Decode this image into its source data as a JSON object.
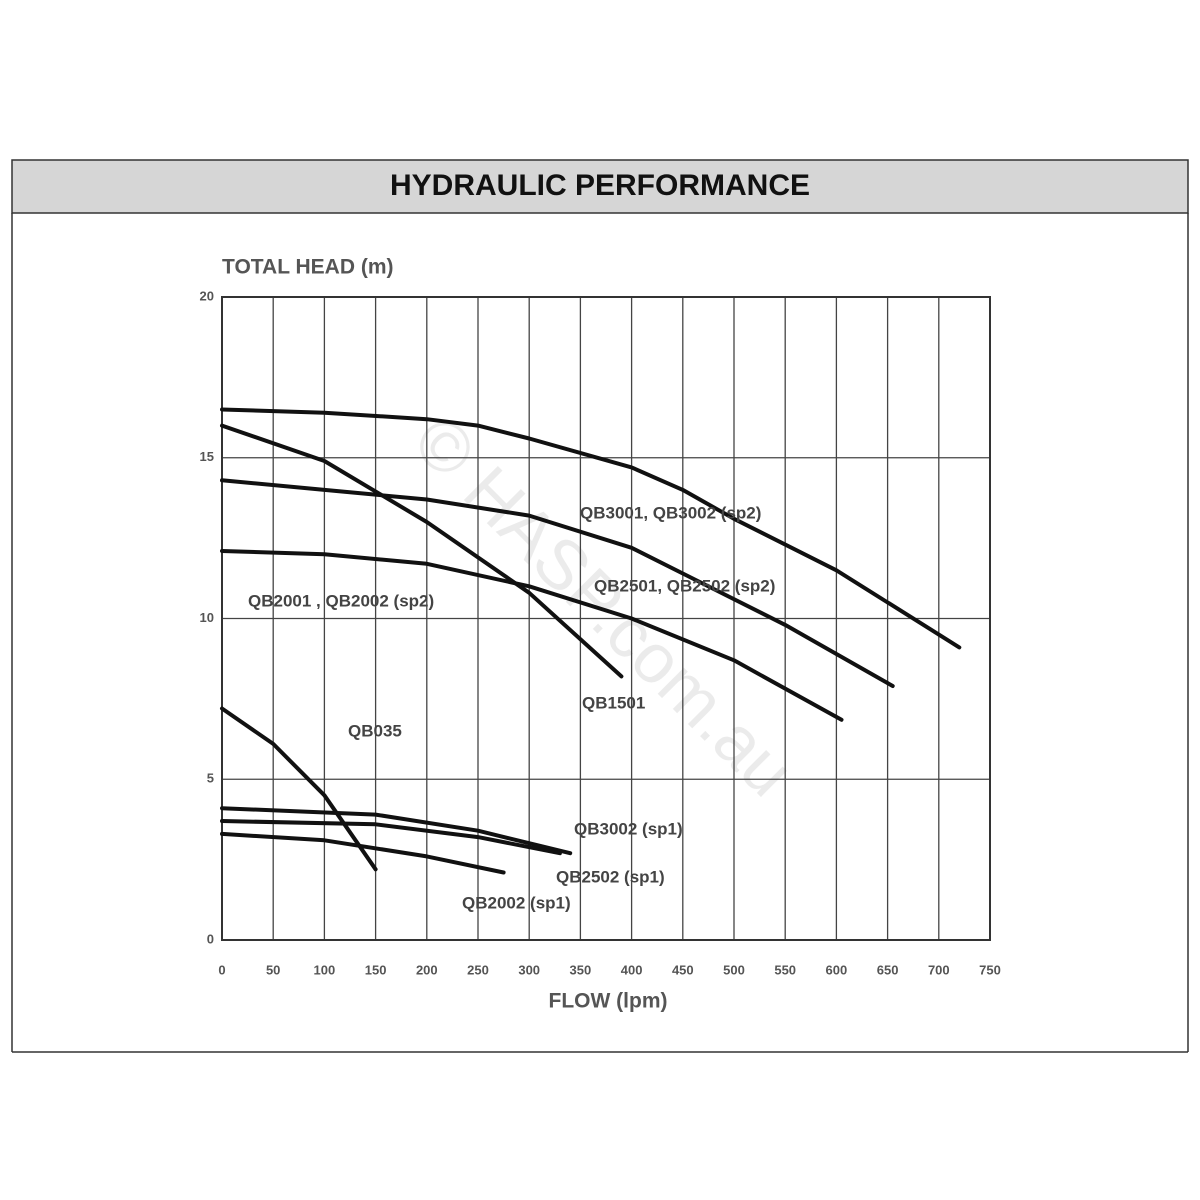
{
  "chart_data": {
    "type": "line",
    "title": "HYDRAULIC PERFORMANCE",
    "ylabel": "TOTAL HEAD (m)",
    "xlabel": "FLOW (lpm)",
    "watermark": "© HASP.com.au",
    "xlim": [
      0,
      750
    ],
    "xticks": [
      0,
      50,
      100,
      150,
      200,
      250,
      300,
      350,
      400,
      450,
      500,
      550,
      600,
      650,
      700,
      750
    ],
    "ylim": [
      0,
      20
    ],
    "yticks": [
      0,
      5,
      10,
      15,
      20
    ],
    "grid": true,
    "series": [
      {
        "name": "QB3001, QB3002 (sp2)",
        "color": "#111111",
        "x": [
          0,
          100,
          200,
          250,
          300,
          400,
          450,
          500,
          600,
          720
        ],
        "values": [
          16.5,
          16.4,
          16.2,
          16.0,
          15.6,
          14.7,
          14.0,
          13.1,
          11.5,
          9.1
        ]
      },
      {
        "name": "QB2501, QB2502 (sp2)",
        "color": "#111111",
        "x": [
          0,
          100,
          200,
          300,
          400,
          450,
          550,
          655
        ],
        "values": [
          14.3,
          14.0,
          13.7,
          13.2,
          12.2,
          11.4,
          9.8,
          7.9
        ]
      },
      {
        "name": "QB2001 , QB2002 (sp2)",
        "color": "#111111",
        "x": [
          0,
          100,
          200,
          300,
          400,
          500,
          605
        ],
        "values": [
          12.1,
          12.0,
          11.7,
          11.0,
          10.0,
          8.7,
          6.85
        ]
      },
      {
        "name": "QB1501",
        "color": "#111111",
        "x": [
          0,
          100,
          200,
          300,
          390
        ],
        "values": [
          16.0,
          14.9,
          13.0,
          10.8,
          8.2
        ]
      },
      {
        "name": "QB035",
        "color": "#111111",
        "x": [
          0,
          50,
          100,
          150
        ],
        "values": [
          7.2,
          6.1,
          4.5,
          2.2
        ]
      },
      {
        "name": "QB3002 (sp1)",
        "color": "#111111",
        "x": [
          0,
          150,
          250,
          340
        ],
        "values": [
          4.1,
          3.9,
          3.4,
          2.7
        ]
      },
      {
        "name": "QB2502 (sp1)",
        "color": "#111111",
        "x": [
          0,
          150,
          250,
          330
        ],
        "values": [
          3.7,
          3.6,
          3.2,
          2.7
        ]
      },
      {
        "name": "QB2002 (sp1)",
        "color": "#111111",
        "x": [
          0,
          100,
          200,
          275
        ],
        "values": [
          3.3,
          3.1,
          2.6,
          2.1
        ]
      }
    ]
  }
}
